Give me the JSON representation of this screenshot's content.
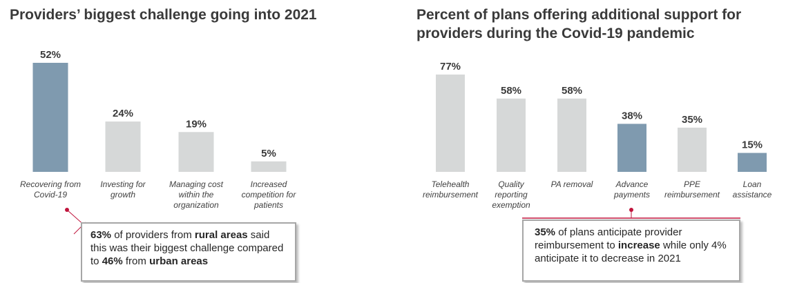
{
  "chart_data": [
    {
      "type": "bar",
      "title": "Providers’ biggest challenge going into 2021",
      "categories": [
        [
          "Recovering from",
          "Covid-19"
        ],
        [
          "Investing for",
          "growth"
        ],
        [
          "Managing cost",
          "within the",
          "organization"
        ],
        [
          "Increased",
          "competition for",
          "patients"
        ]
      ],
      "values": [
        52,
        24,
        19,
        5
      ],
      "value_labels": [
        "52%",
        "24%",
        "19%",
        "5%"
      ],
      "highlight": [
        true,
        false,
        false,
        false
      ],
      "ylim": [
        0,
        52
      ],
      "xlabel": "",
      "ylabel": ""
    },
    {
      "type": "bar",
      "title": "Percent of plans offering additional support for providers during the Covid-19 pandemic",
      "categories": [
        [
          "Telehealth",
          "reimbursement"
        ],
        [
          "Quality",
          "reporting",
          "exemption"
        ],
        [
          "PA removal"
        ],
        [
          "Advance",
          "payments"
        ],
        [
          "PPE",
          "reimbursement"
        ],
        [
          "Loan",
          "assistance"
        ]
      ],
      "values": [
        77,
        58,
        58,
        38,
        35,
        15
      ],
      "value_labels": [
        "77%",
        "58%",
        "58%",
        "38%",
        "35%",
        "15%"
      ],
      "highlight": [
        false,
        false,
        false,
        true,
        false,
        true
      ],
      "ylim": [
        0,
        77
      ],
      "xlabel": "",
      "ylabel": ""
    }
  ],
  "colors": {
    "highlight": "#7f9aaf",
    "neutral": "#d6d8d8",
    "accent_red": "#c0143c",
    "callout_border": "#a6a6a6"
  },
  "left": {
    "title": "Providers’ biggest challenge going into 2021",
    "callout": {
      "p1": "63%",
      "p2": " of providers from ",
      "p3": "rural areas",
      "p4": " said this was their biggest challenge compared to ",
      "p5": "46%",
      "p6": " from ",
      "p7": "urban areas"
    }
  },
  "right": {
    "title_line1": "Percent of plans offering additional support for",
    "title_line2": "providers during the Covid-19 pandemic",
    "callout": {
      "p1": "35%",
      "p2": " of plans anticipate provider reimbursement to ",
      "p3": "increase",
      "p4": " while only 4% anticipate it to decrease in 2021"
    }
  }
}
